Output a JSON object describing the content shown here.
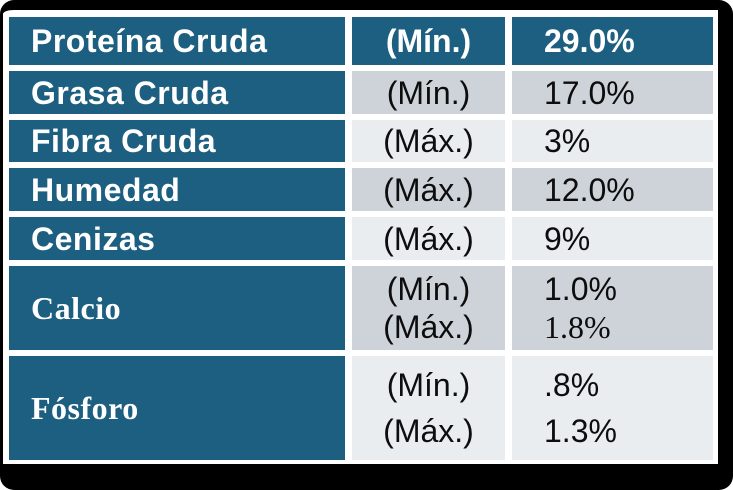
{
  "colors": {
    "teal": "#1d5f80",
    "row_gray_dark": "#ced3da",
    "row_gray_light": "#e9edf0",
    "frame_black": "#000000",
    "text_on_teal": "#ffffff",
    "text_on_gray": "#0d0d0d"
  },
  "table": {
    "header": {
      "label": "Proteína Cruda",
      "qualifier": "(Mín.)",
      "value": "29.0%"
    },
    "rows": [
      {
        "label": "Grasa Cruda",
        "qualifiers": [
          "(Mín.)"
        ],
        "values": [
          "17.0%"
        ]
      },
      {
        "label": "Fibra Cruda",
        "qualifiers": [
          "(Máx.)"
        ],
        "values": [
          "3%"
        ]
      },
      {
        "label": "Humedad",
        "qualifiers": [
          "(Máx.)"
        ],
        "values": [
          "12.0%"
        ]
      },
      {
        "label": "Cenizas",
        "qualifiers": [
          "(Máx.)"
        ],
        "values": [
          "9%"
        ]
      },
      {
        "label": "Calcio",
        "qualifiers": [
          "(Mín.)",
          "(Máx.)"
        ],
        "values": [
          "1.0%",
          "1.8%"
        ]
      },
      {
        "label": "Fósforo",
        "qualifiers": [
          "(Mín.)",
          "(Máx.)"
        ],
        "values": [
          ".8%",
          "1.3%"
        ]
      }
    ]
  }
}
